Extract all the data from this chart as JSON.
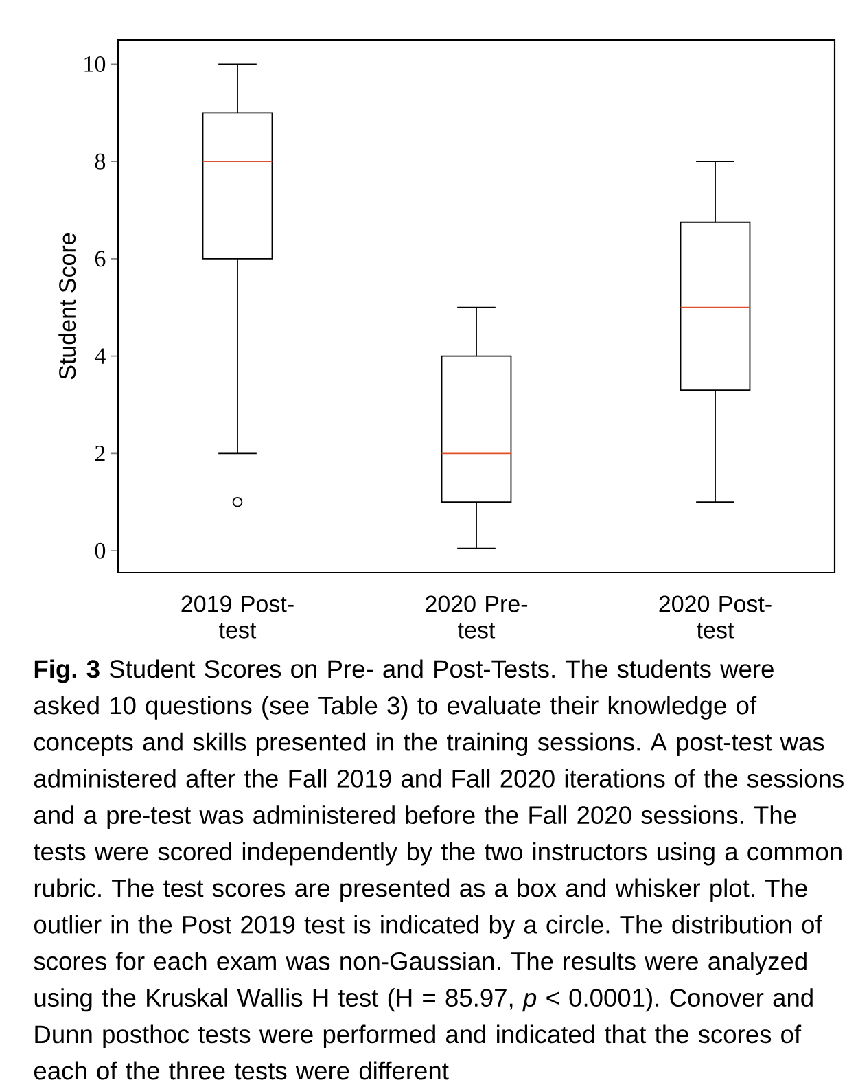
{
  "chart_data": {
    "type": "box",
    "ylabel": "Student Score",
    "categories": [
      "2019 Post-test",
      "2020 Pre-test",
      "2020 Post-test"
    ],
    "boxes": [
      {
        "low": 2,
        "q1": 6,
        "median": 8,
        "q3": 9,
        "high": 10,
        "outliers": [
          1
        ]
      },
      {
        "low": 0.05,
        "q1": 1,
        "median": 2,
        "q3": 4,
        "high": 5
      },
      {
        "low": 1,
        "q1": 3.3,
        "median": 5,
        "q3": 6.75,
        "high": 8
      }
    ],
    "color": "#000000",
    "ylim": [
      -0.45,
      10.5
    ],
    "yticks": [
      0,
      2,
      4,
      6,
      8,
      10
    ],
    "annotations": [
      "**Fig. 3** Student Scores on Pre- and Post-Tests. The students were asked 10 questions (see Table 3) to evaluate their knowledge of concepts and skills presented in the training sessions. A post-test was administered after the Fall 2019 and Fall 2020 iterations of the sessions and a pre-test was administered before the Fall 2020 sessions. The tests were scored independently by the two instructors using a common rubric. The test scores are presented as a box and whisker plot. The outlier in the Post 2019 test is indicated by a circle. The distribution of scores for each exam was non-Gaussian. The results were analyzed using the Kruskal Wallis H test (H = 85.97, *p* < 0.0001). Conover and Dunn posthoc tests were performed and indicated that the scores of each of the three tests were different"
    ]
  }
}
